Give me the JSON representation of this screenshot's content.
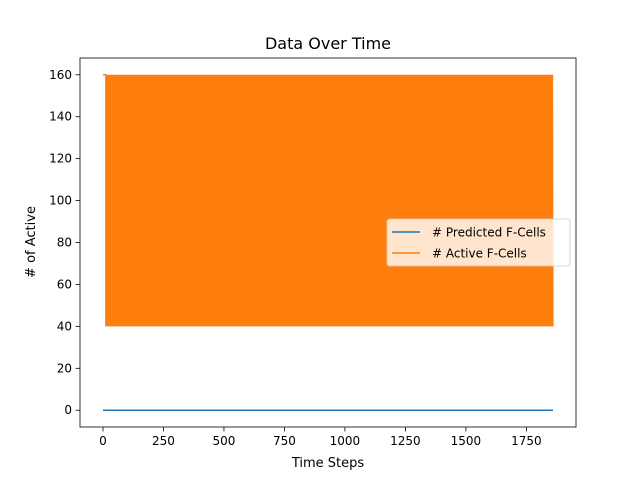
{
  "chart_data": {
    "type": "line",
    "title": "Data Over Time",
    "xlabel": "Time Steps",
    "ylabel": "# of Active",
    "xlim": [
      -95,
      1955
    ],
    "ylim": [
      -8,
      168
    ],
    "xticks": [
      0,
      250,
      500,
      750,
      1000,
      1250,
      1500,
      1750
    ],
    "yticks": [
      0,
      20,
      40,
      60,
      80,
      100,
      120,
      140,
      160
    ],
    "grid": false,
    "legend_position": "center-right",
    "series": [
      {
        "name": "# Predicted F-Cells",
        "color": "#1f77b4",
        "x_start": 0,
        "x_end": 1860,
        "value_constant": 0
      },
      {
        "name": "# Active F-Cells",
        "color": "#ff7f0e",
        "x_start": 0,
        "x_end": 1860,
        "oscillation_min": 40,
        "oscillation_max": 160,
        "initial_value": 160,
        "initial_until_x": 12
      }
    ]
  }
}
